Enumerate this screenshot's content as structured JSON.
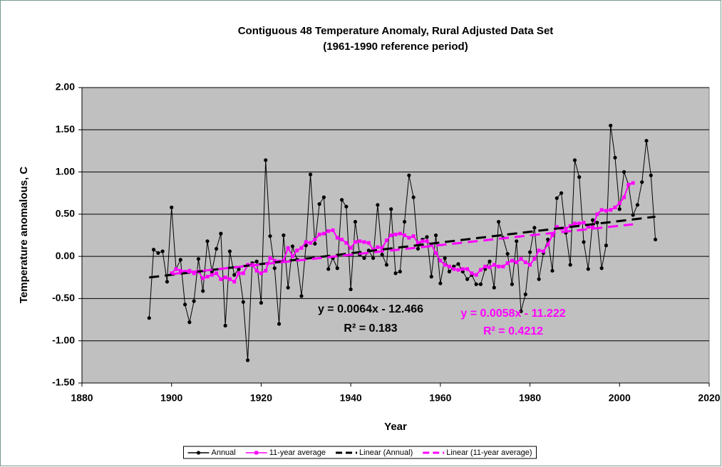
{
  "chart_data": {
    "type": "line",
    "title": "Contiguous 48 Temperature Anomaly, Rural Adjusted Data Set",
    "subtitle": "(1961-1990 reference period)",
    "x_label": "Year",
    "y_label": "Temperature anomalous, C",
    "xlim": [
      1880,
      2020
    ],
    "xticks": [
      1880,
      1900,
      1920,
      1940,
      1960,
      1980,
      2000,
      2020
    ],
    "ylim": [
      -1.5,
      2
    ],
    "yticks": [
      {
        "value": -1.5,
        "label": "-1.50"
      },
      {
        "value": -1,
        "label": "-1.00"
      },
      {
        "value": -0.5,
        "label": "-0.50"
      },
      {
        "value": 0,
        "label": "0.00"
      },
      {
        "value": 0.5,
        "label": "0.50"
      },
      {
        "value": 1,
        "label": "1.00"
      },
      {
        "value": 1.5,
        "label": "1.50"
      },
      {
        "value": 2,
        "label": "2.00"
      }
    ],
    "grid": true,
    "legend": "bottom",
    "series": [
      {
        "name": "Annual",
        "color": "#000000",
        "marker": "circle",
        "x": [
          1895,
          1896,
          1897,
          1898,
          1899,
          1900,
          1901,
          1902,
          1903,
          1904,
          1905,
          1906,
          1907,
          1908,
          1909,
          1910,
          1911,
          1912,
          1913,
          1914,
          1915,
          1916,
          1917,
          1918,
          1919,
          1920,
          1921,
          1922,
          1923,
          1924,
          1925,
          1926,
          1927,
          1928,
          1929,
          1930,
          1931,
          1932,
          1933,
          1934,
          1935,
          1936,
          1937,
          1938,
          1939,
          1940,
          1941,
          1942,
          1943,
          1944,
          1945,
          1946,
          1947,
          1948,
          1949,
          1950,
          1951,
          1952,
          1953,
          1954,
          1955,
          1956,
          1957,
          1958,
          1959,
          1960,
          1961,
          1962,
          1963,
          1964,
          1965,
          1966,
          1967,
          1968,
          1969,
          1970,
          1971,
          1972,
          1973,
          1974,
          1975,
          1976,
          1977,
          1978,
          1979,
          1980,
          1981,
          1982,
          1983,
          1984,
          1985,
          1986,
          1987,
          1988,
          1989,
          1990,
          1991,
          1992,
          1993,
          1994,
          1995,
          1996,
          1997,
          1998,
          1999,
          2000,
          2001,
          2002,
          2003,
          2004,
          2005,
          2006,
          2007,
          2008
        ],
        "values": [
          -0.73,
          0.08,
          0.04,
          0.06,
          -0.3,
          0.58,
          -0.15,
          -0.04,
          -0.57,
          -0.78,
          -0.53,
          -0.03,
          -0.41,
          0.18,
          -0.18,
          0.09,
          0.27,
          -0.82,
          0.06,
          -0.22,
          -0.15,
          -0.54,
          -1.23,
          -0.08,
          -0.06,
          -0.55,
          1.14,
          0.24,
          -0.14,
          -0.8,
          0.25,
          -0.37,
          0.12,
          -0.04,
          -0.47,
          0.13,
          0.97,
          0.15,
          0.62,
          0.7,
          -0.15,
          -0.02,
          -0.14,
          0.67,
          0.59,
          -0.39,
          0.41,
          0.02,
          -0.02,
          0.07,
          -0.02,
          0.61,
          0.02,
          -0.1,
          0.56,
          -0.2,
          -0.18,
          0.41,
          0.96,
          0.7,
          0.09,
          0.2,
          0.23,
          -0.24,
          0.25,
          -0.32,
          -0.02,
          -0.18,
          -0.12,
          -0.09,
          -0.18,
          -0.27,
          -0.22,
          -0.33,
          -0.33,
          -0.15,
          -0.06,
          -0.37,
          0.41,
          0.22,
          0.03,
          -0.33,
          0.18,
          -0.65,
          -0.45,
          0.05,
          0.34,
          -0.27,
          0.04,
          0.2,
          -0.17,
          0.69,
          0.75,
          0.28,
          -0.1,
          1.14,
          0.94,
          0.17,
          -0.15,
          0.43,
          0.4,
          -0.14,
          0.13,
          1.55,
          1.17,
          0.56,
          1.0,
          0.85,
          0.49,
          0.61,
          0.88,
          1.37,
          0.96,
          0.2
        ]
      },
      {
        "name": "11-year average",
        "color": "#ff00ff",
        "marker": "square",
        "x": [
          1900,
          1901,
          1902,
          1903,
          1904,
          1905,
          1906,
          1907,
          1908,
          1909,
          1910,
          1911,
          1912,
          1913,
          1914,
          1915,
          1916,
          1917,
          1918,
          1919,
          1920,
          1921,
          1922,
          1923,
          1924,
          1925,
          1926,
          1927,
          1928,
          1929,
          1930,
          1931,
          1932,
          1933,
          1934,
          1935,
          1936,
          1937,
          1938,
          1939,
          1940,
          1941,
          1942,
          1943,
          1944,
          1945,
          1946,
          1947,
          1948,
          1949,
          1950,
          1951,
          1952,
          1953,
          1954,
          1955,
          1956,
          1957,
          1958,
          1959,
          1960,
          1961,
          1962,
          1963,
          1964,
          1965,
          1966,
          1967,
          1968,
          1969,
          1970,
          1971,
          1972,
          1973,
          1974,
          1975,
          1976,
          1977,
          1978,
          1979,
          1980,
          1981,
          1982,
          1983,
          1984,
          1985,
          1986,
          1987,
          1988,
          1989,
          1990,
          1991,
          1992,
          1993,
          1994,
          1995,
          1996,
          1997,
          1998,
          1999,
          2000,
          2001,
          2002,
          2003
        ],
        "values": [
          -0.2,
          -0.15,
          -0.17,
          -0.18,
          -0.17,
          -0.2,
          -0.18,
          -0.26,
          -0.24,
          -0.22,
          -0.2,
          -0.27,
          -0.25,
          -0.27,
          -0.3,
          -0.2,
          -0.2,
          -0.1,
          -0.1,
          -0.17,
          -0.2,
          -0.17,
          -0.02,
          -0.05,
          -0.06,
          -0.05,
          0.1,
          0.0,
          0.07,
          0.1,
          0.17,
          0.16,
          0.2,
          0.26,
          0.27,
          0.3,
          0.31,
          0.22,
          0.2,
          0.16,
          0.1,
          0.17,
          0.18,
          0.17,
          0.16,
          0.08,
          0.11,
          0.1,
          0.19,
          0.25,
          0.26,
          0.27,
          0.25,
          0.22,
          0.24,
          0.16,
          0.18,
          0.18,
          0.14,
          0.04,
          -0.05,
          -0.1,
          -0.12,
          -0.15,
          -0.16,
          -0.15,
          -0.15,
          -0.2,
          -0.22,
          -0.16,
          -0.12,
          -0.13,
          -0.1,
          -0.12,
          -0.12,
          -0.08,
          -0.05,
          -0.07,
          -0.03,
          -0.07,
          -0.1,
          -0.03,
          0.07,
          0.06,
          0.14,
          0.25,
          0.35,
          0.33,
          0.33,
          0.36,
          0.39,
          0.39,
          0.4,
          0.35,
          0.34,
          0.5,
          0.55,
          0.54,
          0.55,
          0.58,
          0.63,
          0.7,
          0.85,
          0.87
        ]
      },
      {
        "name": "Linear (Annual)",
        "color": "#000000",
        "marker": "none",
        "dashed": true,
        "x": [
          1895,
          2008
        ],
        "values": [
          -0.25,
          0.47
        ]
      },
      {
        "name": "Linear (11-year average)",
        "color": "#ff00ff",
        "marker": "none",
        "dashed": true,
        "x": [
          1900,
          2003
        ],
        "values": [
          -0.21,
          0.38
        ]
      }
    ],
    "annotations": [
      {
        "text": "y = 0.0064x - 12.466",
        "color": "#000000"
      },
      {
        "text": "R² = 0.183",
        "color": "#000000"
      },
      {
        "text": "y = 0.0058x - 11.222",
        "color": "#ff00ff"
      },
      {
        "text": "R² = 0.4212",
        "color": "#ff00ff"
      }
    ]
  }
}
